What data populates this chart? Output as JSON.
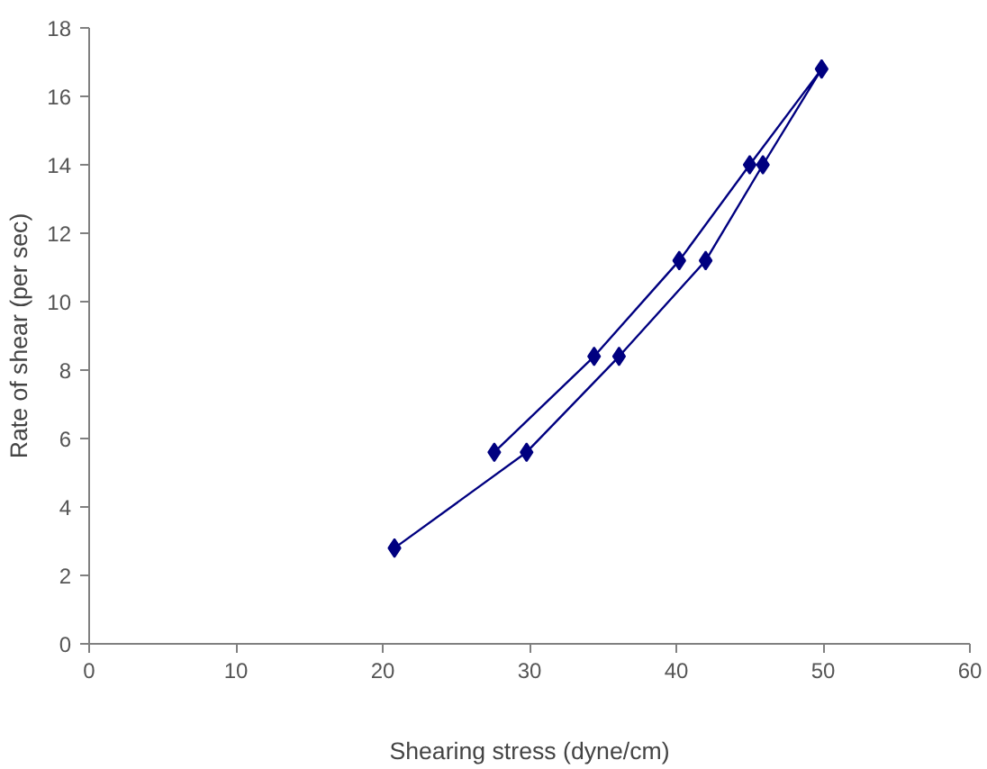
{
  "chart_data": {
    "type": "line",
    "xlabel": "Shearing stress (dyne/cm)",
    "ylabel": "Rate of shear (per sec)",
    "series": [
      {
        "color": "#000080",
        "x": [
          20.8,
          29.8,
          36.1,
          42.0,
          45.9,
          49.9,
          45.0,
          40.2,
          34.4,
          27.6
        ],
        "values": [
          2.8,
          5.6,
          8.4,
          11.2,
          14,
          16.8,
          14,
          11.2,
          8.4,
          5.6
        ]
      }
    ],
    "xlim": [
      0,
      60
    ],
    "xticks": [
      0,
      10,
      20,
      30,
      40,
      50,
      60
    ],
    "ylim": [
      0,
      18
    ],
    "yticks": [
      0,
      2,
      4,
      6,
      8,
      10,
      12,
      14,
      16,
      18
    ],
    "marker": "diamond",
    "line_style": "solid"
  }
}
